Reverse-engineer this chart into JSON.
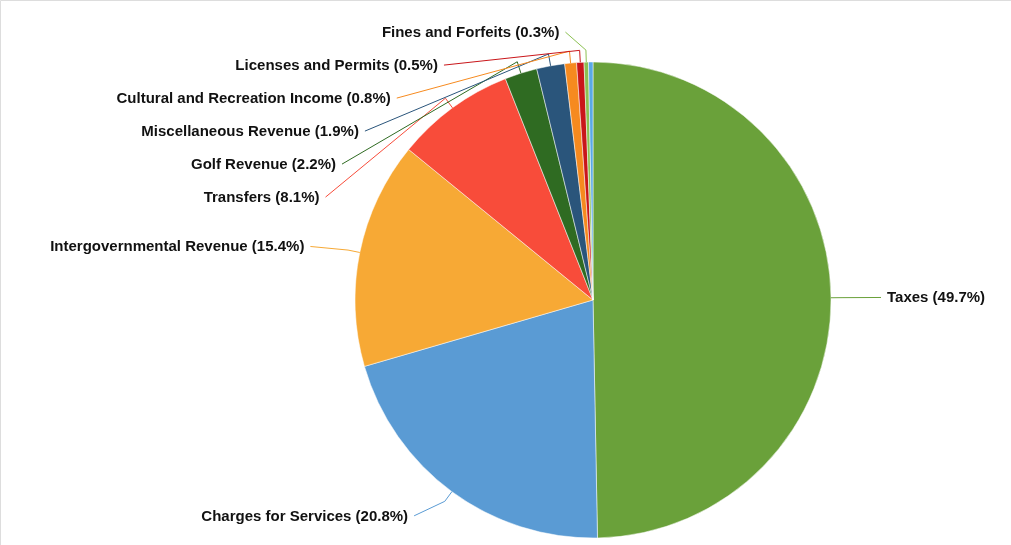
{
  "chart_data": {
    "type": "pie",
    "categories": [
      "Taxes",
      "Charges for Services",
      "Intergovernmental Revenue",
      "Transfers",
      "Golf Revenue",
      "Miscellaneous Revenue",
      "Cultural and Recreation Income",
      "Licenses and Permits",
      "Fines and Forfeits",
      null
    ],
    "values": [
      49.7,
      20.8,
      15.4,
      8.1,
      2.2,
      1.9,
      0.8,
      0.5,
      0.3,
      0.3
    ],
    "colors": [
      "#6aa13a",
      "#5a9bd4",
      "#f7a935",
      "#f84c3a",
      "#2f6b22",
      "#2a557b",
      "#f68a1f",
      "#c9161a",
      "#8cc152",
      "#5aa9e6"
    ],
    "value_labels": [
      "(49.7%)",
      "(20.8%)",
      "(15.4%)",
      "(8.1%)",
      "(2.2%)",
      "(1.9%)",
      "(0.8%)",
      "(0.5%)",
      "(0.3%)",
      null
    ]
  }
}
